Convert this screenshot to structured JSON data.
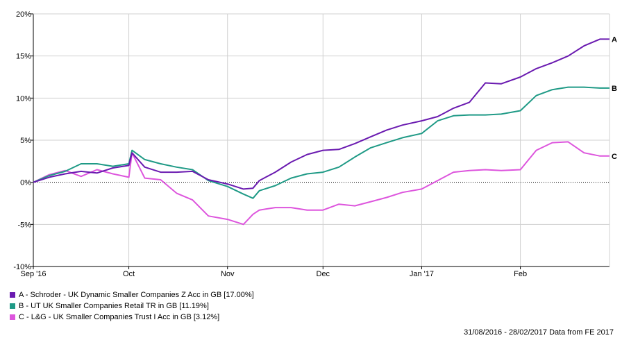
{
  "chart_data": {
    "type": "line",
    "x_dates": [
      "2016-08-31",
      "2016-09-05",
      "2016-09-10",
      "2016-09-15",
      "2016-09-20",
      "2016-09-25",
      "2016-09-30",
      "2016-10-01",
      "2016-10-05",
      "2016-10-10",
      "2016-10-15",
      "2016-10-20",
      "2016-10-25",
      "2016-10-31",
      "2016-11-05",
      "2016-11-08",
      "2016-11-10",
      "2016-11-15",
      "2016-11-20",
      "2016-11-25",
      "2016-11-30",
      "2016-12-05",
      "2016-12-10",
      "2016-12-15",
      "2016-12-20",
      "2016-12-25",
      "2016-12-31",
      "2017-01-05",
      "2017-01-10",
      "2017-01-15",
      "2017-01-20",
      "2017-01-25",
      "2017-01-31",
      "2017-02-05",
      "2017-02-10",
      "2017-02-15",
      "2017-02-20",
      "2017-02-25",
      "2017-02-28"
    ],
    "series": [
      {
        "name": "A - Schroder - UK Dynamic Smaller Companies Z Acc in GB [17.00%]",
        "end_label": "A",
        "color": "#6a1ab0",
        "values": [
          0,
          0.6,
          1.0,
          1.3,
          1.1,
          1.7,
          2.0,
          3.5,
          1.8,
          1.2,
          1.2,
          1.3,
          0.3,
          -0.2,
          -0.8,
          -0.7,
          0.2,
          1.2,
          2.4,
          3.3,
          3.8,
          3.9,
          4.6,
          5.4,
          6.2,
          6.8,
          7.3,
          7.8,
          8.8,
          9.5,
          11.8,
          11.7,
          12.5,
          13.5,
          14.2,
          15.0,
          16.2,
          17.0,
          17.0
        ]
      },
      {
        "name": "B - UT UK Smaller Companies Retail TR in GB [11.19%]",
        "end_label": "B",
        "color": "#1f9a86",
        "values": [
          0,
          0.8,
          1.3,
          2.2,
          2.2,
          1.9,
          2.2,
          3.8,
          2.7,
          2.2,
          1.8,
          1.5,
          0.2,
          -0.5,
          -1.4,
          -1.9,
          -1.0,
          -0.4,
          0.5,
          1.0,
          1.2,
          1.8,
          3.0,
          4.1,
          4.7,
          5.3,
          5.8,
          7.3,
          7.9,
          8.0,
          8.0,
          8.1,
          8.5,
          10.3,
          11.0,
          11.3,
          11.3,
          11.19,
          11.19
        ]
      },
      {
        "name": "C - L&G - UK Smaller Companies Trust I Acc in GB [3.12%]",
        "end_label": "C",
        "color": "#dd55dd",
        "values": [
          0,
          0.9,
          1.4,
          0.7,
          1.5,
          1.0,
          0.6,
          3.5,
          0.5,
          0.3,
          -1.3,
          -2.1,
          -4.0,
          -4.4,
          -5.0,
          -3.8,
          -3.3,
          -3.0,
          -3.0,
          -3.3,
          -3.3,
          -2.6,
          -2.8,
          -2.3,
          -1.8,
          -1.2,
          -0.8,
          0.2,
          1.2,
          1.4,
          1.5,
          1.4,
          1.5,
          3.8,
          4.7,
          4.8,
          3.5,
          3.12,
          3.12
        ]
      }
    ],
    "x_ticks": [
      {
        "date": "2016-08-31",
        "label": "Sep '16"
      },
      {
        "date": "2016-09-30",
        "label": "Oct"
      },
      {
        "date": "2016-10-31",
        "label": "Nov"
      },
      {
        "date": "2016-11-30",
        "label": "Dec"
      },
      {
        "date": "2016-12-31",
        "label": "Jan '17"
      },
      {
        "date": "2017-01-31",
        "label": "Feb"
      }
    ],
    "y_ticks": [
      -10,
      -5,
      0,
      5,
      10,
      15,
      20
    ],
    "y_tick_labels": [
      "-10%",
      "-5%",
      "0%",
      "5%",
      "10%",
      "15%",
      "20%"
    ],
    "ylim": [
      -10,
      20
    ],
    "xlim": [
      "2016-08-31",
      "2017-02-28"
    ],
    "grid": true,
    "legend_position": "bottom-left"
  },
  "footer": {
    "period": "31/08/2016 - 28/02/2017",
    "source": "Data from FE 2017"
  }
}
